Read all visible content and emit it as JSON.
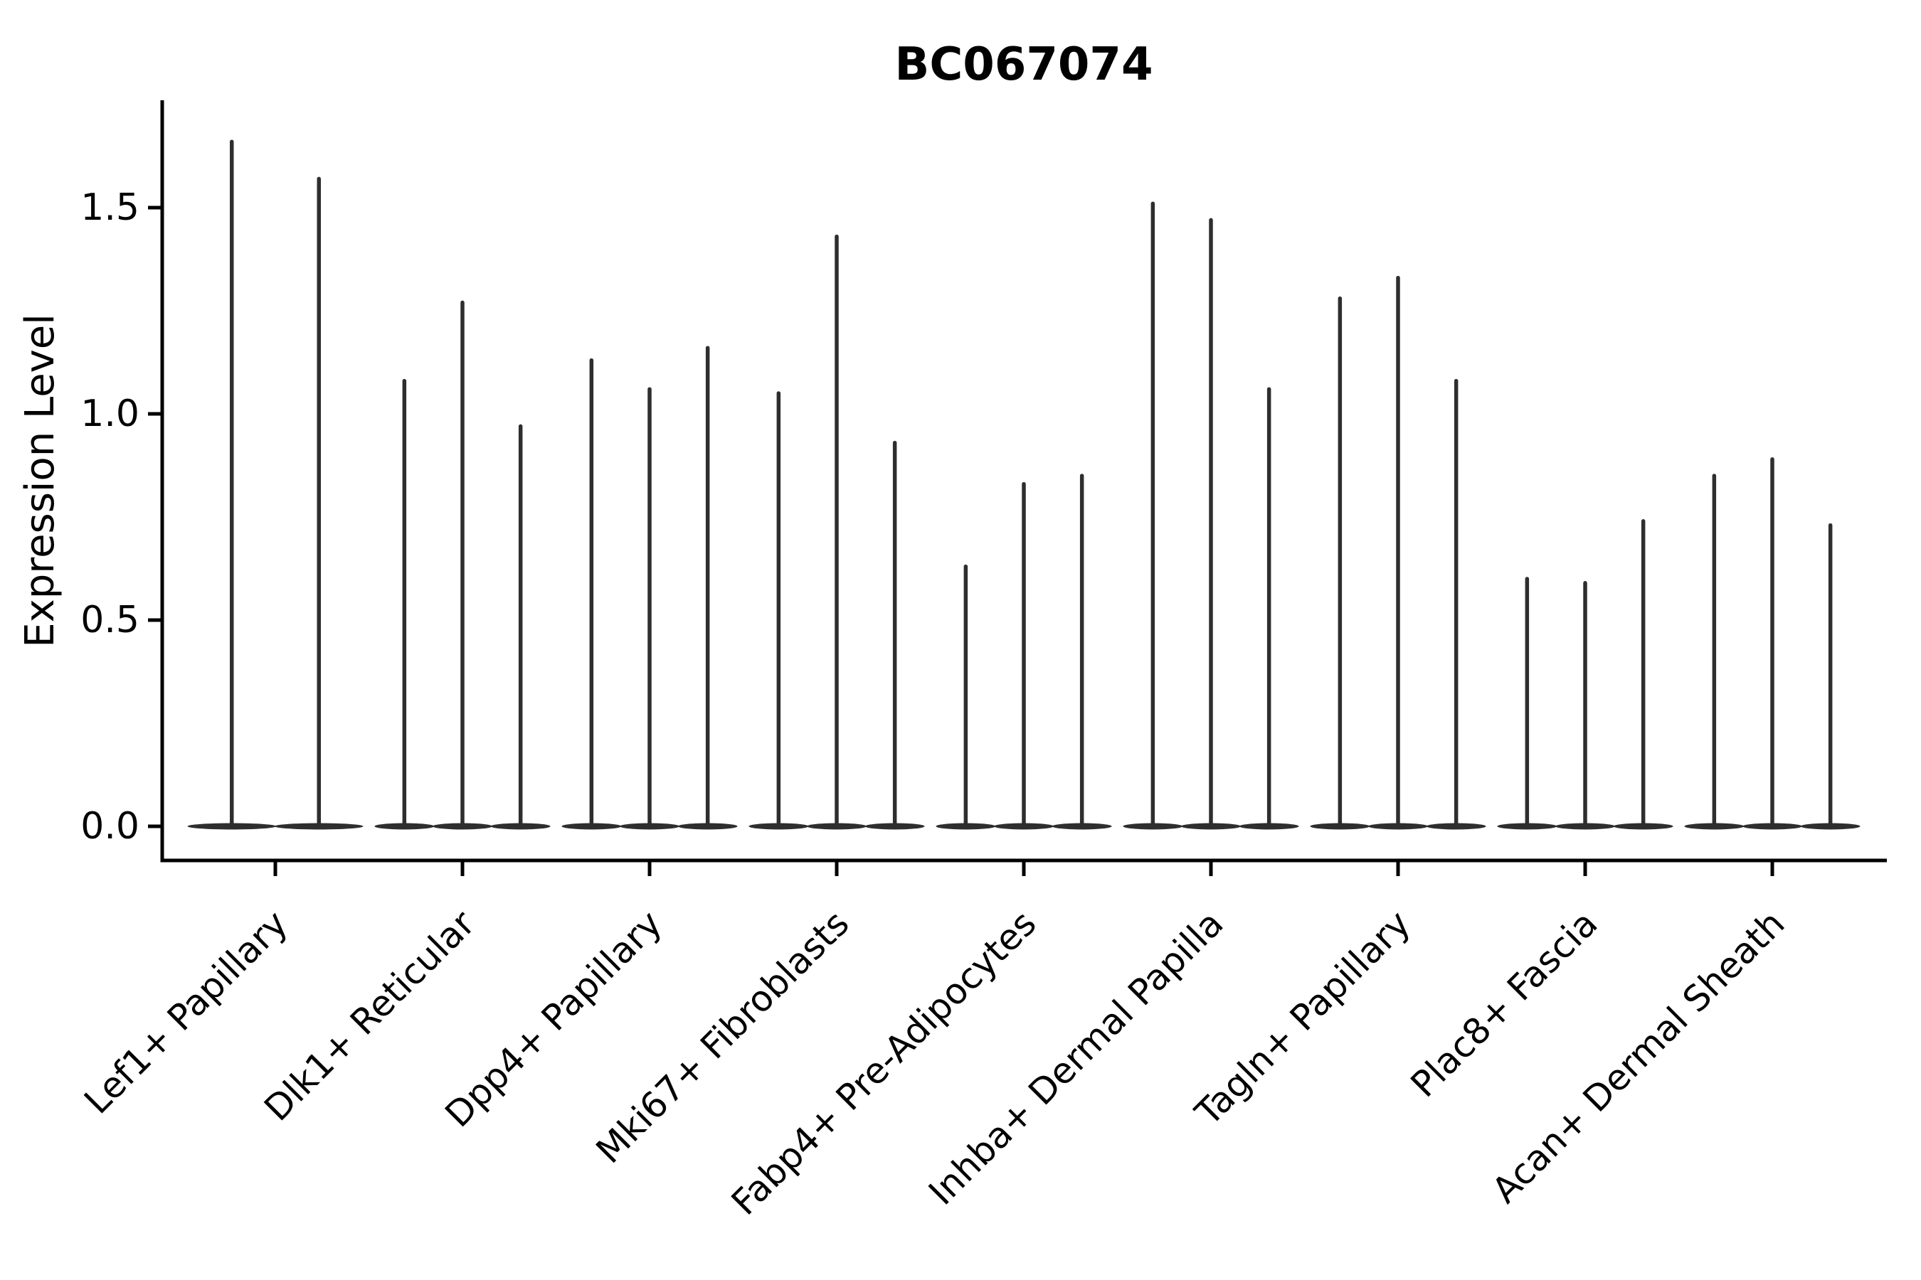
{
  "title": "BC067074",
  "colors": {
    "violin": "#2e2e2e",
    "axis": "#000000",
    "text": "#000000",
    "background": "#ffffff"
  },
  "chart_data": {
    "type": "violin",
    "title": "BC067074",
    "xlabel": "",
    "ylabel": "Expression Level",
    "ytick_values": [
      0.0,
      0.5,
      1.0,
      1.5
    ],
    "ytick_labels": [
      "0.0",
      "0.5",
      "1.0",
      "1.5"
    ],
    "ylim": [
      -0.08,
      1.76
    ],
    "grid": false,
    "legend": null,
    "xtick_rotation_degrees": 45,
    "violin_style": "collapsed-at-zero-with-spike-to-max",
    "categories": [
      "Lef1+ Papillary",
      "Dlk1+ Reticular",
      "Dpp4+ Papillary",
      "Mki67+ Fibroblasts",
      "Fabp4+ Pre-Adipocytes",
      "Inhba+ Dermal Papilla",
      "Tagln+ Papillary",
      "Plac8+ Fascia",
      "Acan+ Dermal Sheath"
    ],
    "groups": [
      {
        "label": "Lef1+ Papillary",
        "violin_max_values": [
          1.66,
          1.57
        ]
      },
      {
        "label": "Dlk1+ Reticular",
        "violin_max_values": [
          1.08,
          1.27,
          0.97
        ]
      },
      {
        "label": "Dpp4+ Papillary",
        "violin_max_values": [
          1.13,
          1.06,
          1.16
        ]
      },
      {
        "label": "Mki67+ Fibroblasts",
        "violin_max_values": [
          1.05,
          1.43,
          0.93
        ]
      },
      {
        "label": "Fabp4+ Pre-Adipocytes",
        "violin_max_values": [
          0.63,
          0.83,
          0.85
        ]
      },
      {
        "label": "Inhba+ Dermal Papilla",
        "violin_max_values": [
          1.51,
          1.47,
          1.06
        ]
      },
      {
        "label": "Tagln+ Papillary",
        "violin_max_values": [
          1.28,
          1.33,
          1.08
        ]
      },
      {
        "label": "Plac8+ Fascia",
        "violin_max_values": [
          0.6,
          0.59,
          0.74
        ]
      },
      {
        "label": "Acan+ Dermal Sheath",
        "violin_max_values": [
          0.85,
          0.89,
          0.73
        ]
      }
    ]
  }
}
